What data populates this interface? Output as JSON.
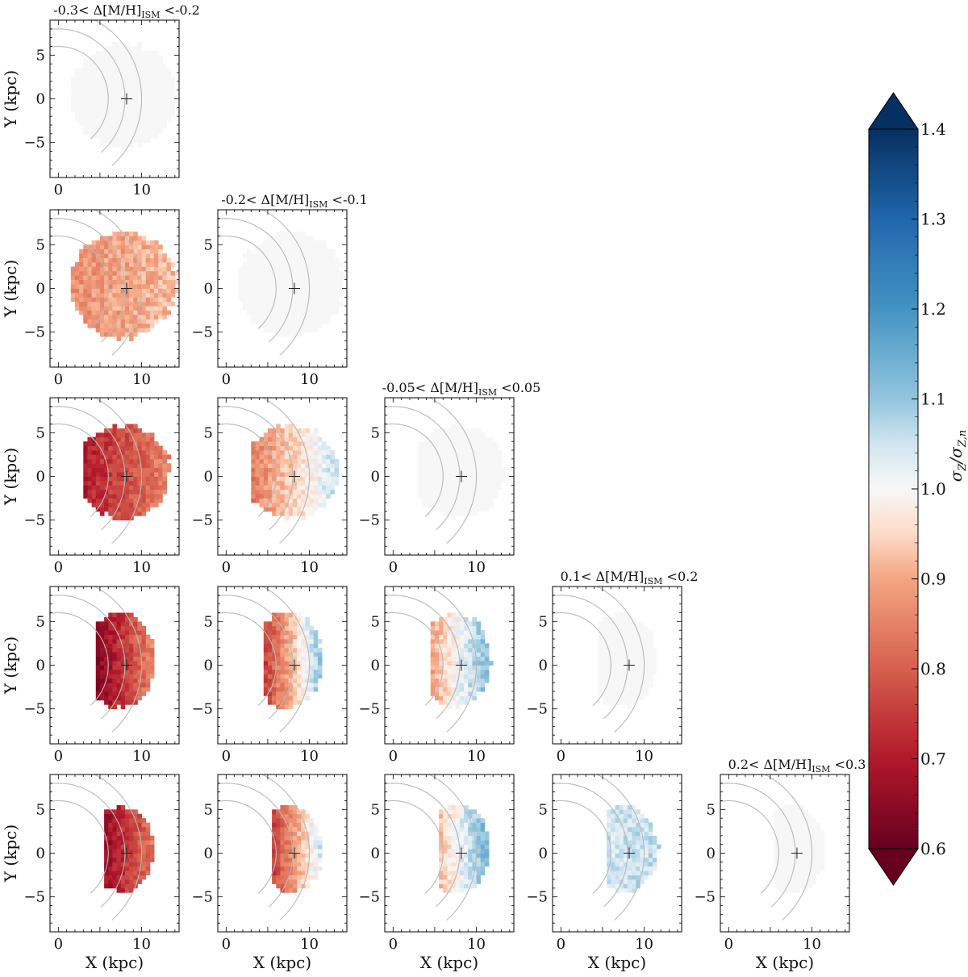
{
  "chart_data": {
    "type": "heatmap",
    "layout": "lower-triangular grid, 5 rows x 5 columns",
    "xlabel": "X (kpc)",
    "ylabel": "Y (kpc)",
    "xlim": [
      -1,
      14.5
    ],
    "ylim": [
      -9,
      9
    ],
    "xticks": [
      0,
      10
    ],
    "yticks": [
      5,
      0,
      -5
    ],
    "ytick_labels": [
      "5",
      "0",
      "−5"
    ],
    "sun_marker": {
      "x": 8.2,
      "y": 0
    },
    "reference_arcs_radius_kpc": [
      6,
      8,
      10
    ],
    "colorbar": {
      "label": "σZ/σZ,n",
      "label_main": "σ",
      "label_sub": "Z",
      "label_div": "/σ",
      "label_sub2": "Z,n",
      "min": 0.6,
      "max": 1.4,
      "extend": "both",
      "cmap": "RdBu",
      "ticks": [
        "1.4",
        "1.3",
        "1.2",
        "1.1",
        "1.0",
        "0.9",
        "0.8",
        "0.7",
        "0.6"
      ],
      "stops": [
        {
          "v": 0.6,
          "color": "#67001f"
        },
        {
          "v": 0.7,
          "color": "#b2182b"
        },
        {
          "v": 0.8,
          "color": "#d6604d"
        },
        {
          "v": 0.9,
          "color": "#f4a582"
        },
        {
          "v": 0.95,
          "color": "#fddbc7"
        },
        {
          "v": 1.0,
          "color": "#f7f7f7"
        },
        {
          "v": 1.05,
          "color": "#d1e5f0"
        },
        {
          "v": 1.1,
          "color": "#92c5de"
        },
        {
          "v": 1.2,
          "color": "#4393c3"
        },
        {
          "v": 1.3,
          "color": "#2166ac"
        },
        {
          "v": 1.4,
          "color": "#053061"
        }
      ]
    },
    "bins": [
      {
        "pre": "-0.3< Δ[M/H]",
        "sub": "ISM",
        "post": " <-0.2"
      },
      {
        "pre": "-0.2< Δ[M/H]",
        "sub": "ISM",
        "post": " <-0.1"
      },
      {
        "pre": "-0.05< Δ[M/H]",
        "sub": "ISM",
        "post": " <0.05"
      },
      {
        "pre": "0.1< Δ[M/H]",
        "sub": "ISM",
        "post": " <0.2"
      },
      {
        "pre": "0.2< Δ[M/H]",
        "sub": "ISM",
        "post": " <0.3"
      }
    ],
    "panels": [
      {
        "row": 0,
        "col": 0,
        "title_bin": 0,
        "mean_ratio": 1.0,
        "inner_ratio": 1.0,
        "outer_ratio": 1.0,
        "footprint": "wide"
      },
      {
        "row": 1,
        "col": 0,
        "mean_ratio": 0.89,
        "inner_ratio": 0.87,
        "outer_ratio": 0.92,
        "footprint": "wide"
      },
      {
        "row": 1,
        "col": 1,
        "title_bin": 1,
        "mean_ratio": 1.0,
        "inner_ratio": 1.0,
        "outer_ratio": 1.0,
        "footprint": "wide"
      },
      {
        "row": 2,
        "col": 0,
        "mean_ratio": 0.76,
        "inner_ratio": 0.7,
        "outer_ratio": 0.86,
        "footprint": "medium"
      },
      {
        "row": 2,
        "col": 1,
        "mean_ratio": 0.88,
        "inner_ratio": 0.84,
        "outer_ratio": 1.06,
        "footprint": "medium"
      },
      {
        "row": 2,
        "col": 2,
        "title_bin": 2,
        "mean_ratio": 1.0,
        "inner_ratio": 1.0,
        "outer_ratio": 1.0,
        "footprint": "medium"
      },
      {
        "row": 3,
        "col": 0,
        "mean_ratio": 0.7,
        "inner_ratio": 0.64,
        "outer_ratio": 0.86,
        "footprint": "narrow"
      },
      {
        "row": 3,
        "col": 1,
        "mean_ratio": 0.82,
        "inner_ratio": 0.75,
        "outer_ratio": 1.12,
        "footprint": "narrow"
      },
      {
        "row": 3,
        "col": 2,
        "mean_ratio": 0.97,
        "inner_ratio": 0.9,
        "outer_ratio": 1.13,
        "footprint": "narrow"
      },
      {
        "row": 3,
        "col": 3,
        "title_bin": 3,
        "mean_ratio": 1.0,
        "inner_ratio": 1.0,
        "outer_ratio": 1.0,
        "footprint": "narrow"
      },
      {
        "row": 4,
        "col": 0,
        "mean_ratio": 0.71,
        "inner_ratio": 0.66,
        "outer_ratio": 0.84,
        "footprint": "slim"
      },
      {
        "row": 4,
        "col": 1,
        "mean_ratio": 0.8,
        "inner_ratio": 0.74,
        "outer_ratio": 1.06,
        "footprint": "slim"
      },
      {
        "row": 4,
        "col": 2,
        "mean_ratio": 0.98,
        "inner_ratio": 0.92,
        "outer_ratio": 1.14,
        "footprint": "slim"
      },
      {
        "row": 4,
        "col": 3,
        "mean_ratio": 1.04,
        "inner_ratio": 1.04,
        "outer_ratio": 1.06,
        "footprint": "slim"
      },
      {
        "row": 4,
        "col": 4,
        "title_bin": 4,
        "mean_ratio": 1.0,
        "inner_ratio": 1.0,
        "outer_ratio": 1.0,
        "footprint": "slim"
      }
    ]
  }
}
